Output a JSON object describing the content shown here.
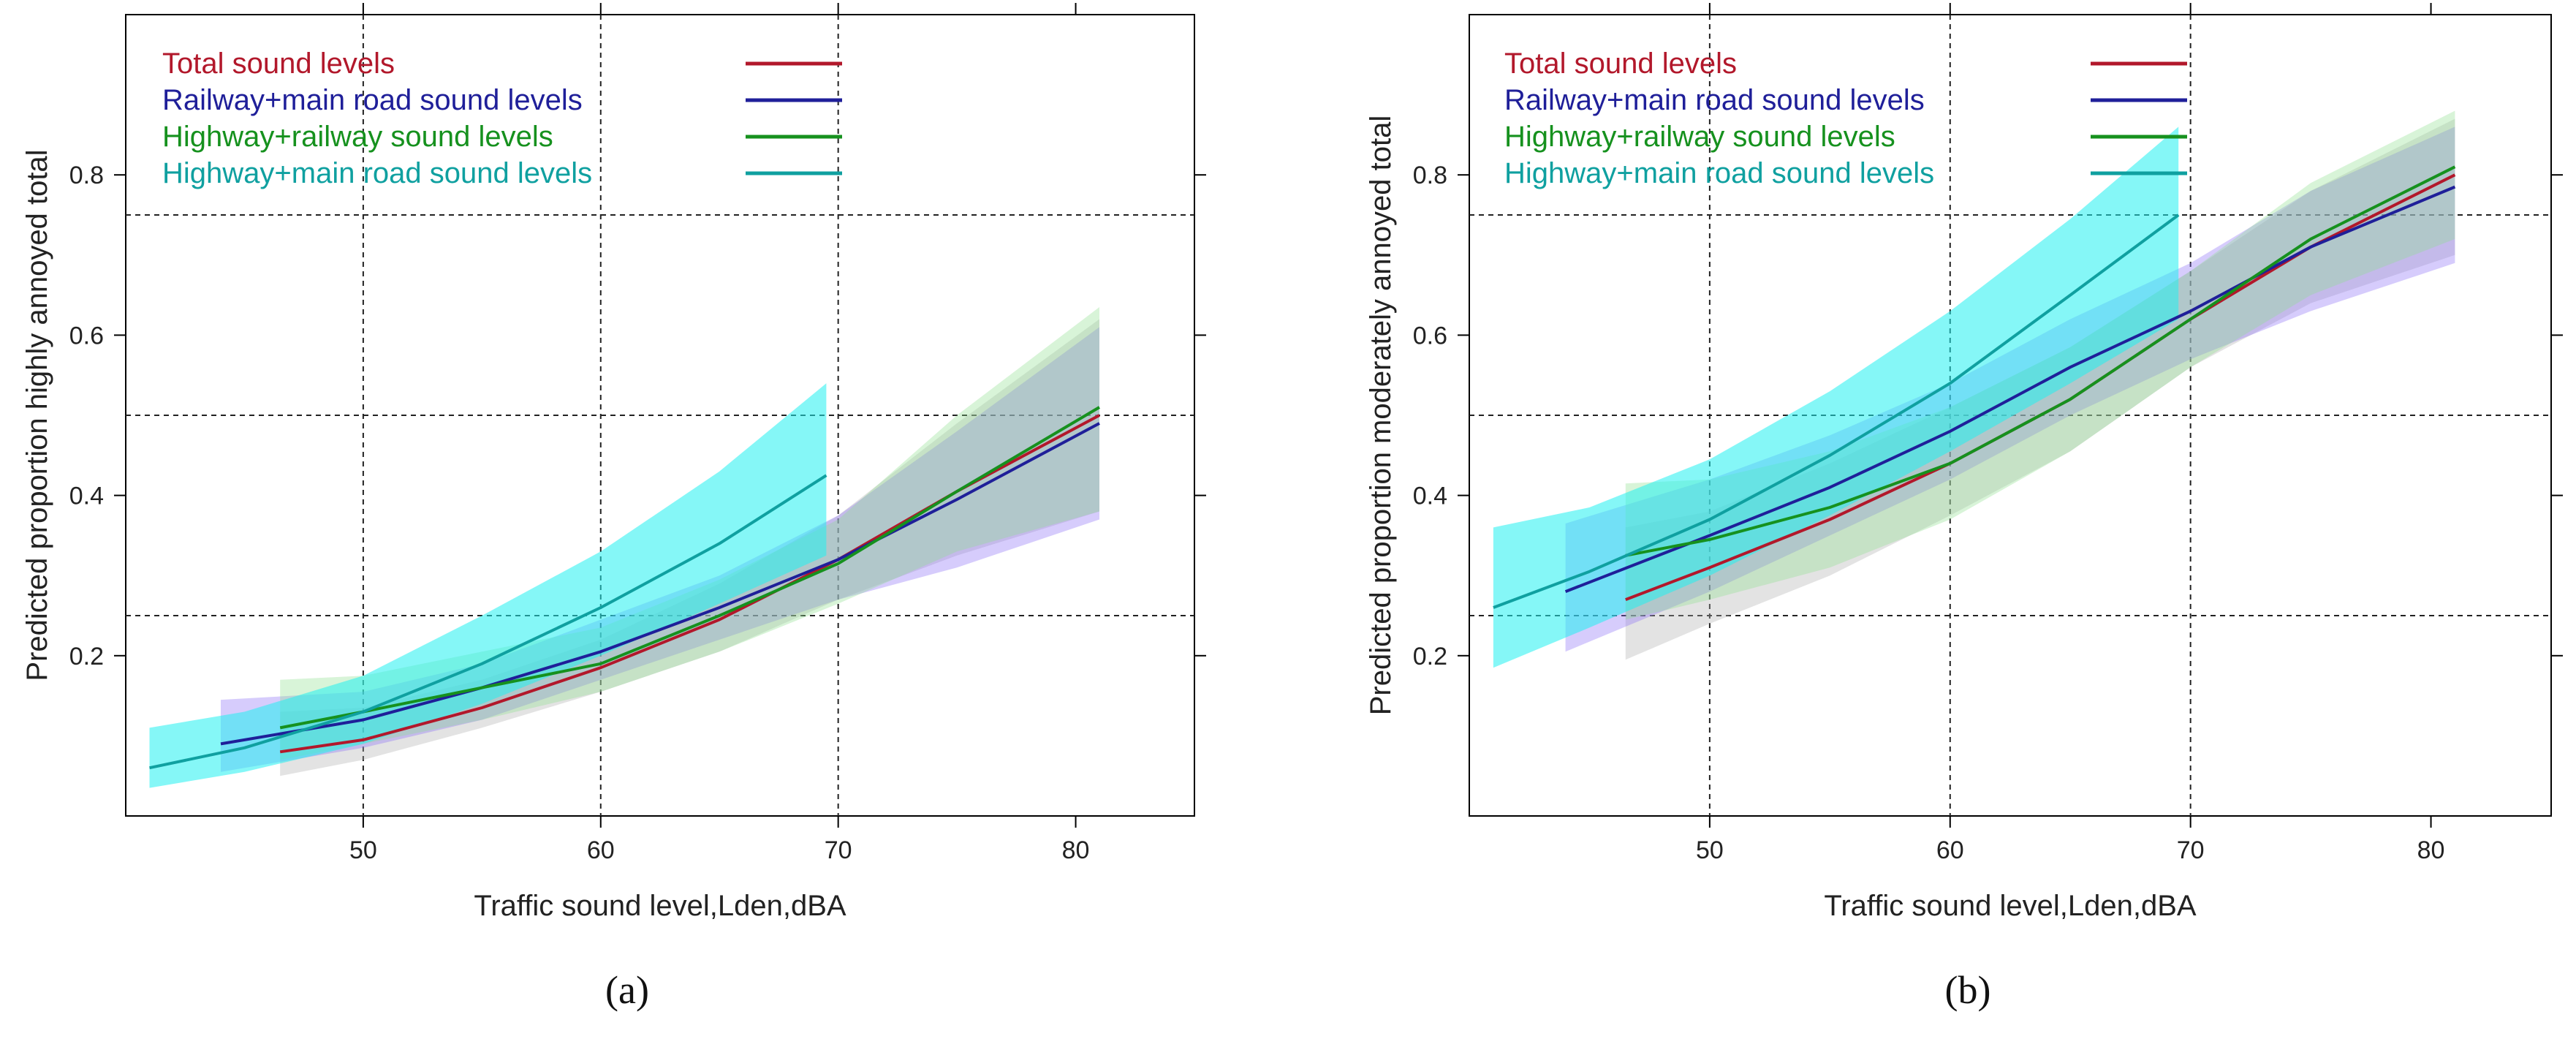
{
  "chart_data": [
    {
      "id": "a",
      "type": "line",
      "caption": "(a)",
      "xlabel": "Traffic sound level,Lden,dBA",
      "ylabel": "Predicted proportion highly annoyed total",
      "xlim": [
        40,
        85
      ],
      "ylim": [
        0,
        1
      ],
      "xticks": [
        50,
        60,
        70,
        80
      ],
      "yticks": [
        0.2,
        0.4,
        0.6,
        0.8
      ],
      "xtick_labels": [
        "50",
        "60",
        "70",
        "80"
      ],
      "ytick_labels": [
        "0.2",
        "0.4",
        "0.6",
        "0.8"
      ],
      "ref_hlines": [
        0.25,
        0.5,
        0.75
      ],
      "ref_vlines": [
        50,
        60,
        70
      ],
      "legend_position": "top-left",
      "series": [
        {
          "name": "Total sound levels",
          "color": "#b2182b",
          "band_color": "#b0b0b0",
          "x": [
            46.5,
            50,
            55,
            60,
            65,
            70,
            75,
            81
          ],
          "y": [
            0.08,
            0.095,
            0.135,
            0.185,
            0.245,
            0.32,
            0.405,
            0.5
          ],
          "lower": [
            0.05,
            0.07,
            0.11,
            0.155,
            0.205,
            0.27,
            0.325,
            0.38
          ],
          "upper": [
            0.13,
            0.135,
            0.17,
            0.22,
            0.29,
            0.375,
            0.49,
            0.62
          ]
        },
        {
          "name": "Railway+main road sound levels",
          "color": "#1f1f99",
          "band_color": "#8a6cf5",
          "x": [
            44,
            50,
            55,
            60,
            65,
            70,
            75,
            81
          ],
          "y": [
            0.09,
            0.12,
            0.16,
            0.205,
            0.26,
            0.32,
            0.395,
            0.49
          ],
          "lower": [
            0.055,
            0.085,
            0.12,
            0.17,
            0.22,
            0.27,
            0.31,
            0.37
          ],
          "upper": [
            0.145,
            0.155,
            0.19,
            0.245,
            0.3,
            0.375,
            0.48,
            0.61
          ]
        },
        {
          "name": "Highway+railway sound levels",
          "color": "#16911e",
          "band_color": "#8fe08f",
          "x": [
            46.5,
            50,
            55,
            60,
            65,
            70,
            75,
            81
          ],
          "y": [
            0.11,
            0.13,
            0.16,
            0.19,
            0.25,
            0.315,
            0.405,
            0.51
          ],
          "lower": [
            0.07,
            0.09,
            0.12,
            0.155,
            0.205,
            0.265,
            0.33,
            0.38
          ],
          "upper": [
            0.17,
            0.175,
            0.205,
            0.235,
            0.295,
            0.37,
            0.5,
            0.635
          ]
        },
        {
          "name": "Highway+main road sound levels",
          "color": "#0fa0a0",
          "band_color": "#20f0f0",
          "x": [
            41,
            45,
            50,
            55,
            60,
            65,
            69.5
          ],
          "y": [
            0.06,
            0.085,
            0.13,
            0.19,
            0.26,
            0.34,
            0.425
          ],
          "lower": [
            0.035,
            0.055,
            0.09,
            0.14,
            0.2,
            0.265,
            0.325
          ],
          "upper": [
            0.11,
            0.13,
            0.175,
            0.25,
            0.33,
            0.43,
            0.54
          ]
        }
      ]
    },
    {
      "id": "b",
      "type": "line",
      "caption": "(b)",
      "xlabel": "Traffic sound level,Lden,dBA",
      "ylabel": "Predicted proportion moderately annoyed total",
      "xlim": [
        40,
        85
      ],
      "ylim": [
        0,
        1
      ],
      "xticks": [
        50,
        60,
        70,
        80
      ],
      "yticks": [
        0.2,
        0.4,
        0.6,
        0.8
      ],
      "xtick_labels": [
        "50",
        "60",
        "70",
        "80"
      ],
      "ytick_labels": [
        "0.2",
        "0.4",
        "0.6",
        "0.8"
      ],
      "ref_hlines": [
        0.25,
        0.5,
        0.75
      ],
      "ref_vlines": [
        50,
        60,
        70
      ],
      "legend_position": "top-left",
      "series": [
        {
          "name": "Total sound levels",
          "color": "#b2182b",
          "band_color": "#b0b0b0",
          "x": [
            46.5,
            50,
            55,
            60,
            65,
            70,
            75,
            81
          ],
          "y": [
            0.27,
            0.31,
            0.37,
            0.44,
            0.52,
            0.62,
            0.71,
            0.8
          ],
          "lower": [
            0.195,
            0.24,
            0.3,
            0.375,
            0.455,
            0.56,
            0.64,
            0.7
          ],
          "upper": [
            0.36,
            0.38,
            0.44,
            0.51,
            0.585,
            0.68,
            0.78,
            0.87
          ]
        },
        {
          "name": "Railway+main road sound levels",
          "color": "#1f1f99",
          "band_color": "#8a6cf5",
          "x": [
            44,
            50,
            55,
            60,
            65,
            70,
            75,
            81
          ],
          "y": [
            0.28,
            0.35,
            0.41,
            0.48,
            0.56,
            0.63,
            0.71,
            0.785
          ],
          "lower": [
            0.205,
            0.28,
            0.35,
            0.42,
            0.5,
            0.57,
            0.63,
            0.69
          ],
          "upper": [
            0.365,
            0.42,
            0.475,
            0.54,
            0.62,
            0.69,
            0.78,
            0.86
          ]
        },
        {
          "name": "Highway+railway sound levels",
          "color": "#16911e",
          "band_color": "#8fe08f",
          "x": [
            46.5,
            50,
            55,
            60,
            65,
            70,
            75,
            81
          ],
          "y": [
            0.325,
            0.345,
            0.385,
            0.44,
            0.52,
            0.62,
            0.72,
            0.81
          ],
          "lower": [
            0.245,
            0.27,
            0.31,
            0.37,
            0.455,
            0.56,
            0.65,
            0.72
          ],
          "upper": [
            0.415,
            0.42,
            0.455,
            0.51,
            0.585,
            0.68,
            0.79,
            0.88
          ]
        },
        {
          "name": "Highway+main road sound levels",
          "color": "#0fa0a0",
          "band_color": "#20f0f0",
          "x": [
            41,
            45,
            50,
            55,
            60,
            65,
            69.5
          ],
          "y": [
            0.26,
            0.305,
            0.37,
            0.45,
            0.54,
            0.65,
            0.75
          ],
          "lower": [
            0.185,
            0.235,
            0.3,
            0.375,
            0.455,
            0.54,
            0.62
          ],
          "upper": [
            0.36,
            0.385,
            0.445,
            0.53,
            0.63,
            0.745,
            0.86
          ]
        }
      ]
    }
  ]
}
